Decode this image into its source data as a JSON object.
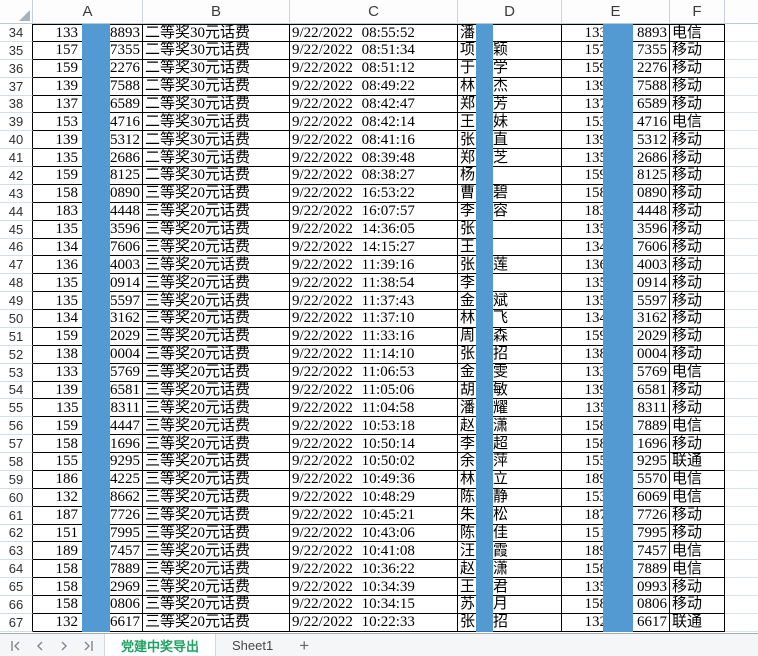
{
  "column_headers": [
    "A",
    "B",
    "C",
    "D",
    "E",
    "F"
  ],
  "colors": {
    "redaction_bar": "#549ad2",
    "active_tab_text": "#1fa263",
    "cell_border": "#000000",
    "light_gridline": "#dbe3ea"
  },
  "tabbar": {
    "active_tab": "党建中奖导出",
    "inactive_tab": "Sheet1",
    "add_label": "+"
  },
  "rows": [
    {
      "n": "34",
      "a_prefix": "133",
      "a_suffix": "8893",
      "prize": "二等奖30元话费",
      "datetime": "9/22/2022 08:55:52",
      "surname": "潘",
      "given": "",
      "e_prefix": "133",
      "e_suffix": "8893",
      "carrier": "电信"
    },
    {
      "n": "35",
      "a_prefix": "157",
      "a_suffix": "7355",
      "prize": "二等奖30元话费",
      "datetime": "9/22/2022 08:51:34",
      "surname": "项",
      "given": "颖",
      "e_prefix": "157",
      "e_suffix": "7355",
      "carrier": "移动"
    },
    {
      "n": "36",
      "a_prefix": "159",
      "a_suffix": "2276",
      "prize": "二等奖30元话费",
      "datetime": "9/22/2022 08:51:12",
      "surname": "于",
      "given": "学",
      "e_prefix": "159",
      "e_suffix": "2276",
      "carrier": "移动"
    },
    {
      "n": "37",
      "a_prefix": "139",
      "a_suffix": "7588",
      "prize": "二等奖30元话费",
      "datetime": "9/22/2022 08:49:22",
      "surname": "林",
      "given": "杰",
      "e_prefix": "139",
      "e_suffix": "7588",
      "carrier": "移动"
    },
    {
      "n": "38",
      "a_prefix": "137",
      "a_suffix": "6589",
      "prize": "二等奖30元话费",
      "datetime": "9/22/2022 08:42:47",
      "surname": "郑",
      "given": "芳",
      "e_prefix": "137",
      "e_suffix": "6589",
      "carrier": "移动"
    },
    {
      "n": "39",
      "a_prefix": "153",
      "a_suffix": "4716",
      "prize": "二等奖30元话费",
      "datetime": "9/22/2022 08:42:14",
      "surname": "王",
      "given": "妹",
      "e_prefix": "153",
      "e_suffix": "4716",
      "carrier": "电信"
    },
    {
      "n": "40",
      "a_prefix": "139",
      "a_suffix": "5312",
      "prize": "二等奖30元话费",
      "datetime": "9/22/2022 08:41:16",
      "surname": "张",
      "given": "直",
      "e_prefix": "139",
      "e_suffix": "5312",
      "carrier": "移动"
    },
    {
      "n": "41",
      "a_prefix": "135",
      "a_suffix": "2686",
      "prize": "二等奖30元话费",
      "datetime": "9/22/2022 08:39:48",
      "surname": "郑",
      "given": "芝",
      "e_prefix": "135",
      "e_suffix": "2686",
      "carrier": "移动"
    },
    {
      "n": "42",
      "a_prefix": "159",
      "a_suffix": "8125",
      "prize": "二等奖30元话费",
      "datetime": "9/22/2022 08:38:27",
      "surname": "杨",
      "given": "",
      "e_prefix": "159",
      "e_suffix": "8125",
      "carrier": "移动"
    },
    {
      "n": "43",
      "a_prefix": "158",
      "a_suffix": "0890",
      "prize": "三等奖20元话费",
      "datetime": "9/22/2022 16:53:22",
      "surname": "曹",
      "given": "碧",
      "e_prefix": "158",
      "e_suffix": "0890",
      "carrier": "移动"
    },
    {
      "n": "44",
      "a_prefix": "183",
      "a_suffix": "4448",
      "prize": "三等奖20元话费",
      "datetime": "9/22/2022 16:07:57",
      "surname": "李",
      "given": "容",
      "e_prefix": "183",
      "e_suffix": "4448",
      "carrier": "移动"
    },
    {
      "n": "45",
      "a_prefix": "135",
      "a_suffix": "3596",
      "prize": "三等奖20元话费",
      "datetime": "9/22/2022 14:36:05",
      "surname": "张",
      "given": "",
      "e_prefix": "135",
      "e_suffix": "3596",
      "carrier": "移动"
    },
    {
      "n": "46",
      "a_prefix": "134",
      "a_suffix": "7606",
      "prize": "三等奖20元话费",
      "datetime": "9/22/2022 14:15:27",
      "surname": "王",
      "given": "",
      "e_prefix": "134",
      "e_suffix": "7606",
      "carrier": "移动"
    },
    {
      "n": "47",
      "a_prefix": "136",
      "a_suffix": "4003",
      "prize": "三等奖20元话费",
      "datetime": "9/22/2022 11:39:16",
      "surname": "张",
      "given": "莲",
      "e_prefix": "136",
      "e_suffix": "4003",
      "carrier": "移动"
    },
    {
      "n": "48",
      "a_prefix": "135",
      "a_suffix": "0914",
      "prize": "三等奖20元话费",
      "datetime": "9/22/2022 11:38:54",
      "surname": "李",
      "given": "",
      "e_prefix": "135",
      "e_suffix": "0914",
      "carrier": "移动"
    },
    {
      "n": "49",
      "a_prefix": "135",
      "a_suffix": "5597",
      "prize": "三等奖20元话费",
      "datetime": "9/22/2022 11:37:43",
      "surname": "金",
      "given": "斌",
      "e_prefix": "135",
      "e_suffix": "5597",
      "carrier": "移动"
    },
    {
      "n": "50",
      "a_prefix": "134",
      "a_suffix": "3162",
      "prize": "三等奖20元话费",
      "datetime": "9/22/2022 11:37:10",
      "surname": "林",
      "given": "飞",
      "e_prefix": "134",
      "e_suffix": "3162",
      "carrier": "移动"
    },
    {
      "n": "51",
      "a_prefix": "159",
      "a_suffix": "2029",
      "prize": "三等奖20元话费",
      "datetime": "9/22/2022 11:33:16",
      "surname": "周",
      "given": "森",
      "e_prefix": "159",
      "e_suffix": "2029",
      "carrier": "移动"
    },
    {
      "n": "52",
      "a_prefix": "138",
      "a_suffix": "0004",
      "prize": "三等奖20元话费",
      "datetime": "9/22/2022 11:14:10",
      "surname": "张",
      "given": "招",
      "e_prefix": "138",
      "e_suffix": "0004",
      "carrier": "移动"
    },
    {
      "n": "53",
      "a_prefix": "133",
      "a_suffix": "5769",
      "prize": "三等奖20元话费",
      "datetime": "9/22/2022 11:06:53",
      "surname": "金",
      "given": "雯",
      "e_prefix": "133",
      "e_suffix": "5769",
      "carrier": "电信"
    },
    {
      "n": "54",
      "a_prefix": "139",
      "a_suffix": "6581",
      "prize": "三等奖20元话费",
      "datetime": "9/22/2022 11:05:06",
      "surname": "胡",
      "given": "敏",
      "e_prefix": "139",
      "e_suffix": "6581",
      "carrier": "移动"
    },
    {
      "n": "55",
      "a_prefix": "135",
      "a_suffix": "8311",
      "prize": "三等奖20元话费",
      "datetime": "9/22/2022 11:04:58",
      "surname": "潘",
      "given": "耀",
      "e_prefix": "135",
      "e_suffix": "8311",
      "carrier": "移动"
    },
    {
      "n": "56",
      "a_prefix": "159",
      "a_suffix": "4447",
      "prize": "三等奖20元话费",
      "datetime": "9/22/2022 10:53:18",
      "surname": "赵",
      "given": "潇",
      "e_prefix": "158",
      "e_suffix": "7889",
      "carrier": "电信"
    },
    {
      "n": "57",
      "a_prefix": "158",
      "a_suffix": "1696",
      "prize": "三等奖20元话费",
      "datetime": "9/22/2022 10:50:14",
      "surname": "李",
      "given": "超",
      "e_prefix": "158",
      "e_suffix": "1696",
      "carrier": "移动"
    },
    {
      "n": "58",
      "a_prefix": "155",
      "a_suffix": "9295",
      "prize": "三等奖20元话费",
      "datetime": "9/22/2022 10:50:02",
      "surname": "余",
      "given": "萍",
      "e_prefix": "155",
      "e_suffix": "9295",
      "carrier": "联通"
    },
    {
      "n": "59",
      "a_prefix": "186",
      "a_suffix": "4225",
      "prize": "三等奖20元话费",
      "datetime": "9/22/2022 10:49:36",
      "surname": "林",
      "given": "立",
      "e_prefix": "189",
      "e_suffix": "5570",
      "carrier": "电信"
    },
    {
      "n": "60",
      "a_prefix": "132",
      "a_suffix": "8662",
      "prize": "三等奖20元话费",
      "datetime": "9/22/2022 10:48:29",
      "surname": "陈",
      "given": "静",
      "e_prefix": "153",
      "e_suffix": "6069",
      "carrier": "电信"
    },
    {
      "n": "61",
      "a_prefix": "187",
      "a_suffix": "7726",
      "prize": "三等奖20元话费",
      "datetime": "9/22/2022 10:45:21",
      "surname": "朱",
      "given": "松",
      "e_prefix": "187",
      "e_suffix": "7726",
      "carrier": "移动"
    },
    {
      "n": "62",
      "a_prefix": "151",
      "a_suffix": "7995",
      "prize": "三等奖20元话费",
      "datetime": "9/22/2022 10:43:06",
      "surname": "陈",
      "given": "佳",
      "e_prefix": "151",
      "e_suffix": "7995",
      "carrier": "移动"
    },
    {
      "n": "63",
      "a_prefix": "189",
      "a_suffix": "7457",
      "prize": "三等奖20元话费",
      "datetime": "9/22/2022 10:41:08",
      "surname": "汪",
      "given": "霞",
      "e_prefix": "189",
      "e_suffix": "7457",
      "carrier": "电信"
    },
    {
      "n": "64",
      "a_prefix": "158",
      "a_suffix": "7889",
      "prize": "三等奖20元话费",
      "datetime": "9/22/2022 10:36:22",
      "surname": "赵",
      "given": "潇",
      "e_prefix": "158",
      "e_suffix": "7889",
      "carrier": "电信"
    },
    {
      "n": "65",
      "a_prefix": "158",
      "a_suffix": "2969",
      "prize": "三等奖20元话费",
      "datetime": "9/22/2022 10:34:39",
      "surname": "王",
      "given": "君",
      "e_prefix": "135",
      "e_suffix": "0993",
      "carrier": "移动"
    },
    {
      "n": "66",
      "a_prefix": "158",
      "a_suffix": "0806",
      "prize": "三等奖20元话费",
      "datetime": "9/22/2022 10:34:15",
      "surname": "苏",
      "given": "月",
      "e_prefix": "158",
      "e_suffix": "0806",
      "carrier": "移动"
    },
    {
      "n": "67",
      "a_prefix": "132",
      "a_suffix": "6617",
      "prize": "三等奖20元话费",
      "datetime": "9/22/2022 10:22:33",
      "surname": "张",
      "given": "招",
      "e_prefix": "132",
      "e_suffix": "6617",
      "carrier": "联通"
    }
  ]
}
